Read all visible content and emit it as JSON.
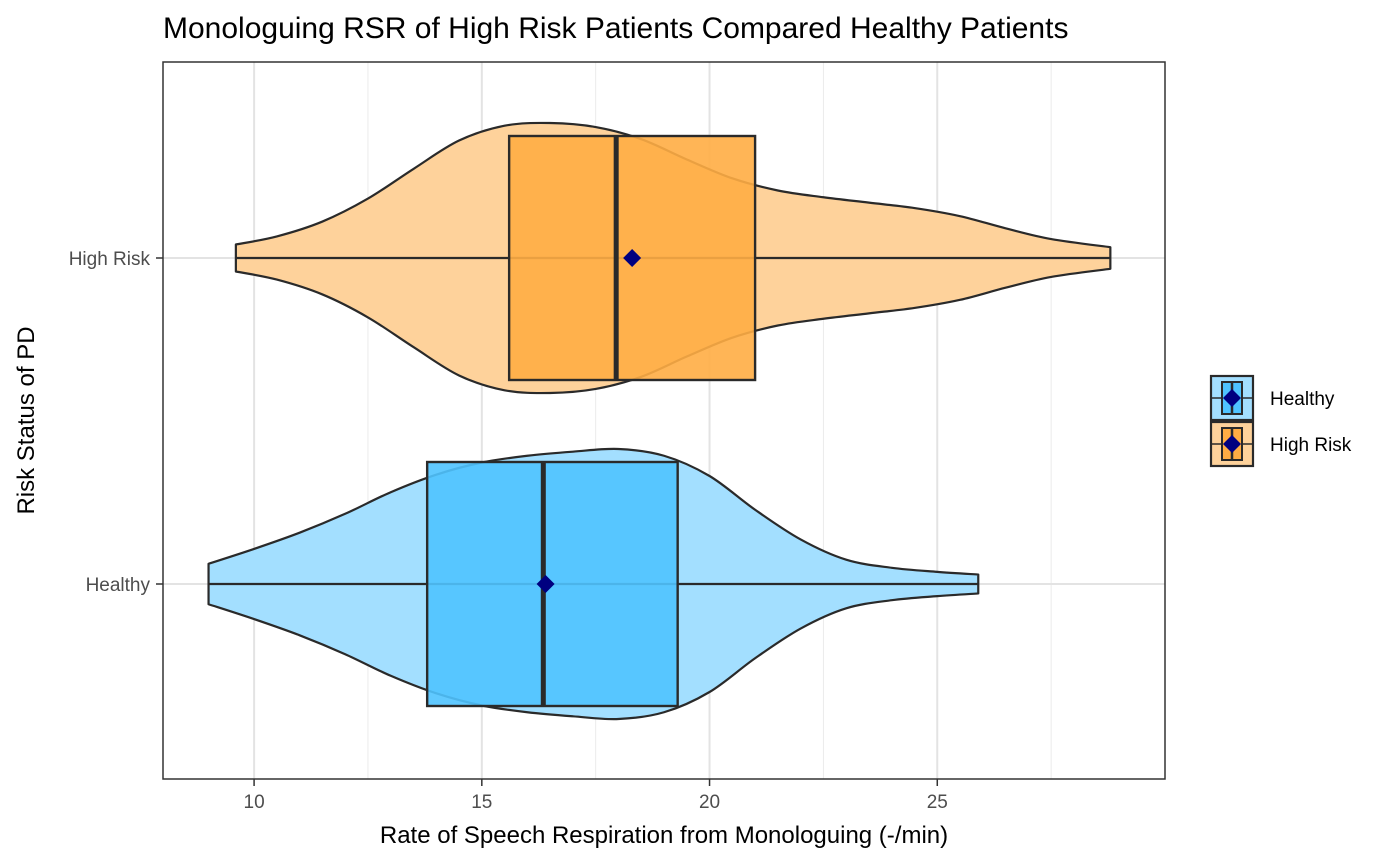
{
  "chart_data": {
    "type": "violin",
    "title": "Monologuing RSR of High Risk Patients Compared Healthy Patients",
    "xlabel": "Rate of Speech Respiration from Monologuing (-/min)",
    "ylabel": "Risk Status of PD",
    "xlim": [
      8.0,
      30.0
    ],
    "x_ticks": [
      10,
      15,
      20,
      25
    ],
    "x_minor_ticks": [
      12.5,
      17.5,
      22.5,
      27.5
    ],
    "categories": [
      "Healthy",
      "High Risk"
    ],
    "grid": true,
    "legend_position": "right",
    "series": [
      {
        "name": "Healthy",
        "color": "#4fc3ff",
        "violin_fill": "#a3dfff",
        "min": 9.0,
        "q1": 13.8,
        "median": 16.35,
        "mean": 16.4,
        "q3": 19.3,
        "max": 25.9,
        "density": [
          [
            9.0,
            0.15
          ],
          [
            10.0,
            0.26
          ],
          [
            11.0,
            0.38
          ],
          [
            12.0,
            0.52
          ],
          [
            13.0,
            0.68
          ],
          [
            14.0,
            0.81
          ],
          [
            15.0,
            0.9
          ],
          [
            16.0,
            0.95
          ],
          [
            17.0,
            0.98
          ],
          [
            18.0,
            1.0
          ],
          [
            19.0,
            0.95
          ],
          [
            20.0,
            0.8
          ],
          [
            21.0,
            0.55
          ],
          [
            22.0,
            0.33
          ],
          [
            23.0,
            0.18
          ],
          [
            24.0,
            0.12
          ],
          [
            25.0,
            0.09
          ],
          [
            25.9,
            0.07
          ]
        ]
      },
      {
        "name": "High Risk",
        "color": "#ffad44",
        "violin_fill": "#fed29b",
        "min": 9.6,
        "q1": 15.6,
        "median": 17.95,
        "mean": 18.3,
        "q3": 21.0,
        "max": 28.8,
        "density": [
          [
            9.6,
            0.1
          ],
          [
            10.5,
            0.16
          ],
          [
            11.5,
            0.27
          ],
          [
            12.5,
            0.44
          ],
          [
            13.5,
            0.66
          ],
          [
            14.5,
            0.87
          ],
          [
            15.5,
            0.98
          ],
          [
            16.5,
            1.0
          ],
          [
            17.5,
            0.97
          ],
          [
            18.5,
            0.88
          ],
          [
            19.5,
            0.73
          ],
          [
            20.5,
            0.59
          ],
          [
            21.5,
            0.5
          ],
          [
            22.5,
            0.45
          ],
          [
            23.5,
            0.41
          ],
          [
            24.5,
            0.37
          ],
          [
            25.5,
            0.31
          ],
          [
            26.5,
            0.22
          ],
          [
            27.5,
            0.14
          ],
          [
            28.8,
            0.08
          ]
        ]
      }
    ]
  }
}
